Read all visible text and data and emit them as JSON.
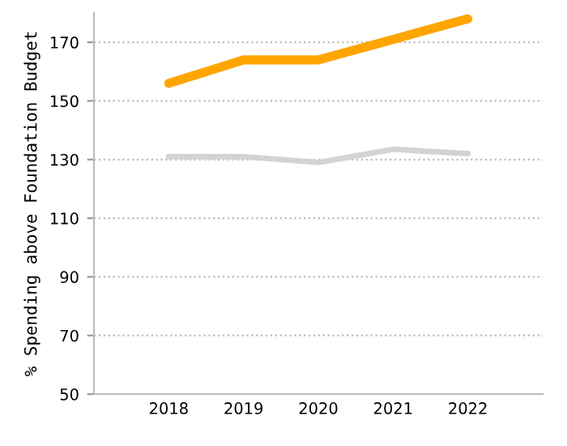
{
  "chart_data": {
    "type": "line",
    "ylabel": "% Spending above Foundation Budget",
    "categories": [
      "2018",
      "2019",
      "2020",
      "2021",
      "2022"
    ],
    "series": [
      {
        "color": "#ffa500",
        "values": [
          156,
          164,
          164,
          171,
          178
        ]
      },
      {
        "color": "#d3d3d3",
        "values": [
          131,
          131,
          129,
          133.5,
          132
        ]
      }
    ],
    "ylim": [
      50,
      180
    ],
    "yticks": [
      50,
      70,
      90,
      110,
      130,
      150,
      170
    ],
    "grid": "y",
    "marker": "none",
    "line_style": "solid"
  }
}
